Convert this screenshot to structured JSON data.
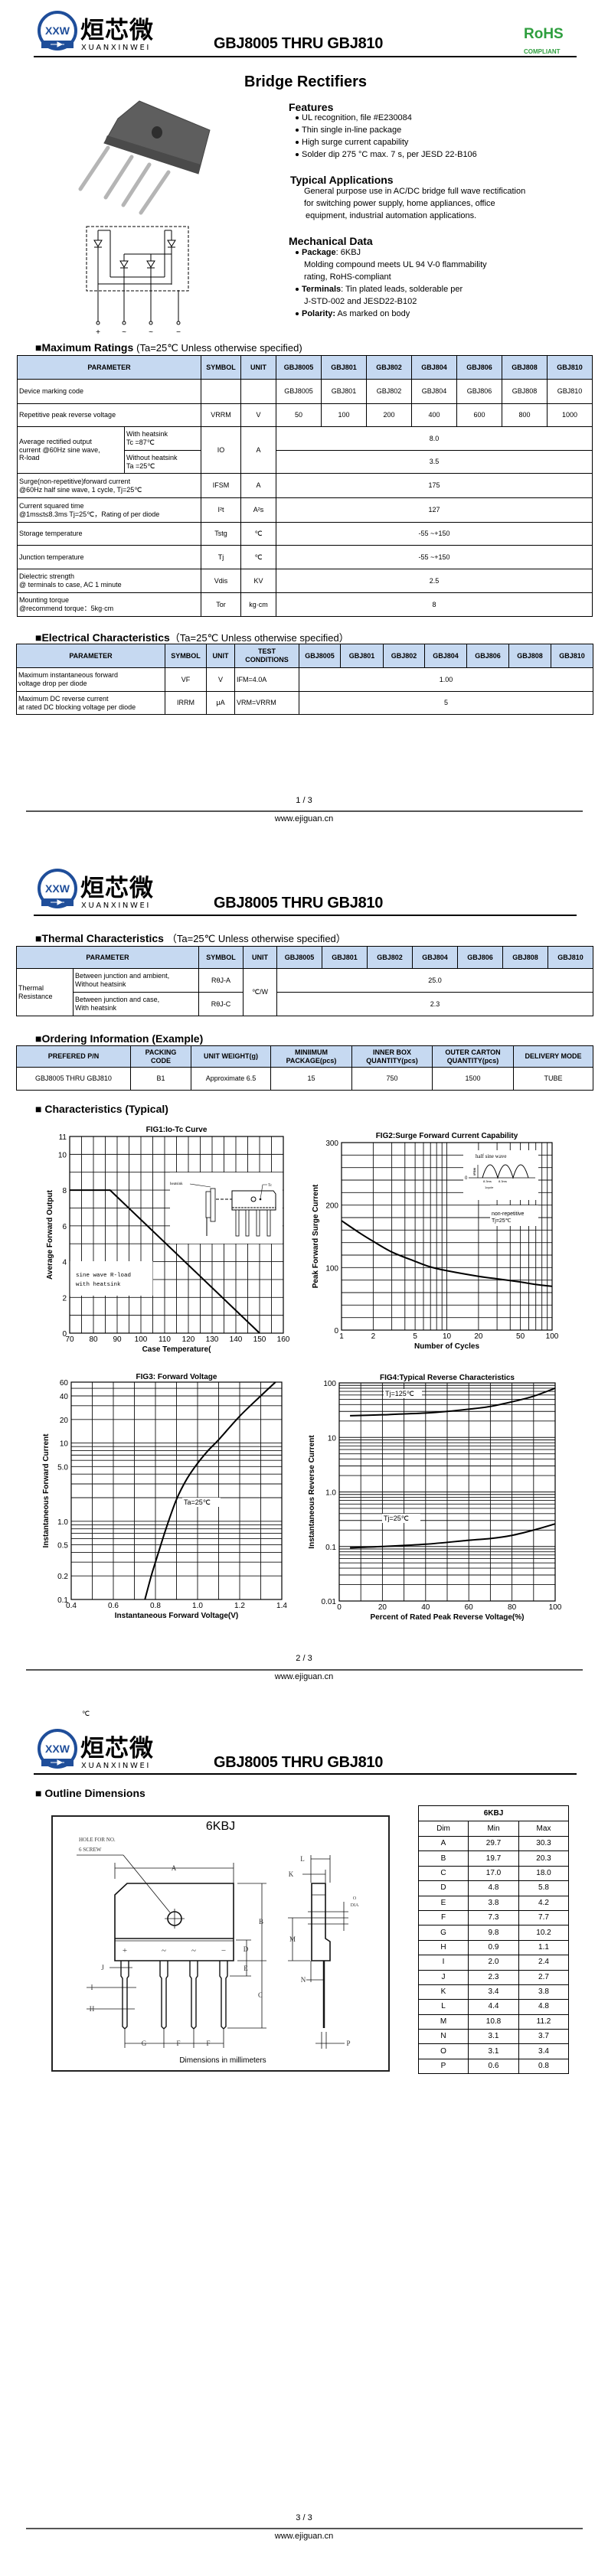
{
  "header": {
    "logo_mark": "XXW",
    "logo_cn": "烜芯微",
    "logo_en": "XUANXINWEI",
    "title": "GBJ8005 THRU GBJ810",
    "rohs": "RoHS",
    "rohs_sub": "COMPLIANT",
    "rohs_color": "#2e9e3e",
    "logo_color": "#1f4e9a"
  },
  "page1": {
    "heading": "Bridge Rectifiers",
    "features": {
      "title": "Features",
      "items": [
        "UL recognition, file #E230084",
        "Thin single in-line package",
        "High surge current capability",
        "Solder dip 275 °C max. 7 s, per JESD 22-B106"
      ]
    },
    "applications": {
      "title": "Typical Applications",
      "lines": [
        "General purpose use in AC/DC bridge full wave rectification",
        "for switching power supply, home appliances, office",
        "equipment, industrial automation applications."
      ]
    },
    "mechanical": {
      "title": "Mechanical Data",
      "package_label": "Package",
      "package_value": ": 6KBJ",
      "package_lines": [
        "Molding compound meets UL 94 V-0 flammability",
        "rating, RoHS-compliant"
      ],
      "terminals_label": "Terminals",
      "terminals_value": ": Tin plated leads, solderable  per",
      "terminals_line": "J-STD-002 and JESD22-B102",
      "polarity_label": "Polarity:",
      "polarity_value": " As marked on body"
    },
    "schematic_pins": [
      "+",
      "~",
      "~",
      "−"
    ]
  },
  "parts": [
    "GBJ8005",
    "GBJ801",
    "GBJ802",
    "GBJ804",
    "GBJ806",
    "GBJ808",
    "GBJ810"
  ],
  "cols": {
    "parameter": "PARAMETER",
    "symbol": "SYMBOL",
    "unit": "UNIT",
    "test": "TEST CONDITIONS"
  },
  "max_ratings": {
    "title": "■Maximum Ratings",
    "cond": "(Ta=25℃ Unless otherwise specified)",
    "marking": {
      "param": "Device marking code",
      "values": [
        "GBJ8005",
        "GBJ801",
        "GBJ802",
        "GBJ804",
        "GBJ806",
        "GBJ808",
        "GBJ810"
      ]
    },
    "vrrm": {
      "param": "Repetitive peak reverse voltage",
      "symbol": "VRRM",
      "unit": "V",
      "values": [
        "50",
        "100",
        "200",
        "400",
        "600",
        "800",
        "1000"
      ]
    },
    "io": {
      "param": [
        "Average rectified output",
        "current  @60Hz sine wave,",
        "R-load"
      ],
      "symbol": "IO",
      "unit": "A",
      "sub": [
        {
          "cond": [
            "With heatsink",
            "Tc =87℃"
          ],
          "value": "8.0"
        },
        {
          "cond": [
            "Without heatsink",
            "Ta =25℃"
          ],
          "value": "3.5"
        }
      ]
    },
    "ifsm": {
      "param": [
        "Surge(non-repetitive)forward current",
        "@60Hz half sine wave, 1 cycle, Tj=25℃"
      ],
      "symbol": "IFSM",
      "unit": "A",
      "value": "175"
    },
    "i2t": {
      "param": [
        "Current squared time",
        "@1ms≤t≤8.3ms Tj=25℃，Rating of per diode"
      ],
      "symbol": "I²t",
      "unit": "A²s",
      "value": "127"
    },
    "tstg": {
      "param": "Storage temperature",
      "symbol": "Tstg",
      "unit": "℃",
      "value": "-55 ~+150"
    },
    "tj": {
      "param": "Junction temperature",
      "symbol": "Tj",
      "unit": "℃",
      "value": "-55 ~+150"
    },
    "vdis": {
      "param": [
        "Dielectric strength",
        "@ terminals to case, AC 1 minute"
      ],
      "symbol": "Vdis",
      "unit": "KV",
      "value": "2.5"
    },
    "tor": {
      "param": [
        "Mounting torque",
        "@recommend torque：5kg·cm"
      ],
      "symbol": "Tor",
      "unit": "kg·cm",
      "value": "8"
    }
  },
  "electrical": {
    "title": "■Electrical Characteristics",
    "cond": "（Ta=25℃ Unless otherwise specified）",
    "vf": {
      "param": [
        "Maximum instantaneous forward",
        "voltage drop per diode"
      ],
      "symbol": "VF",
      "unit": "V",
      "test": "IFM=4.0A",
      "value": "1.00"
    },
    "irrm": {
      "param": [
        "Maximum DC reverse current",
        "at rated DC blocking voltage per diode"
      ],
      "symbol": "IRRM",
      "unit": "μA",
      "test": "VRM=VRRM",
      "value": "5"
    }
  },
  "thermal": {
    "title": "■Thermal Characteristics",
    "cond": "（Ta=25℃ Unless otherwise specified）",
    "group": [
      "Thermal",
      "Resistance"
    ],
    "unit": "℃/W",
    "rows": [
      {
        "cond": [
          "Between junction and ambient,",
          "Without heatsink"
        ],
        "symbol": "RθJ-A",
        "value": "25.0"
      },
      {
        "cond": [
          "Between junction and case,",
          "With heatsink"
        ],
        "symbol": "RθJ-C",
        "value": "2.3"
      }
    ]
  },
  "ordering": {
    "title": "■Ordering Information (Example)",
    "headers": [
      [
        "PREFERED P/N"
      ],
      [
        "PACKING",
        "CODE"
      ],
      [
        "UNIT WEIGHT(g)"
      ],
      [
        "MINIIMUM",
        "PACKAGE(pcs)"
      ],
      [
        "INNER BOX",
        "QUANTITY(pcs)"
      ],
      [
        "OUTER CARTON",
        "QUANTITY(pcs)"
      ],
      [
        "DELIVERY MODE"
      ]
    ],
    "row": [
      "GBJ8005 THRU GBJ810",
      "B1",
      "Approximate  6.5",
      "15",
      "750",
      "1500",
      "TUBE"
    ]
  },
  "characteristics_title": "■ Characteristics (Typical)",
  "chart_data": [
    {
      "type": "line",
      "title": "FIG1:Io-Tc Curve",
      "xlabel": "Case Temperature(",
      "ylabel": "Average Forward Output",
      "xscale": "linear",
      "yscale": "linear",
      "xlim": [
        70,
        160
      ],
      "ylim": [
        0,
        11
      ],
      "grid": true,
      "xticks": [
        "70",
        "80",
        "90",
        "100",
        "110",
        "120",
        "130",
        "140",
        "150",
        "160"
      ],
      "yticks": [
        "0",
        "2",
        "4",
        "6",
        "8",
        "10",
        "11"
      ],
      "series": [
        {
          "points": [
            [
              70,
              8
            ],
            [
              87,
              8
            ],
            [
              150,
              0
            ]
          ]
        }
      ],
      "annotations": [
        "heatsink",
        "Tc",
        "sine wave R-load",
        "with heatsink"
      ]
    },
    {
      "type": "line",
      "title": "FIG2:Surge Forward Current Capability",
      "xlabel": "Number of Cycles",
      "ylabel": "Peak Forward Surge Current",
      "xscale": "log",
      "yscale": "linear",
      "xlim": [
        1,
        100
      ],
      "ylim": [
        0,
        300
      ],
      "grid": true,
      "xticks": [
        "1",
        "2",
        "5",
        "10",
        "20",
        "50",
        "100"
      ],
      "yticks": [
        "0",
        "100",
        "200",
        "300"
      ],
      "series": [
        {
          "points": [
            [
              1,
              175
            ],
            [
              1.5,
              155
            ],
            [
              2,
              142
            ],
            [
              3,
              125
            ],
            [
              5,
              110
            ],
            [
              7,
              101
            ],
            [
              10,
              95
            ],
            [
              20,
              86
            ],
            [
              30,
              82
            ],
            [
              50,
              77
            ],
            [
              70,
              73
            ],
            [
              100,
              70
            ]
          ]
        }
      ],
      "annotations": [
        "half sine wave",
        "IFSM",
        "0",
        "8.3ms",
        "8.3ms",
        "1cycle",
        "non-repetitive",
        "Tj=25℃"
      ]
    },
    {
      "type": "line",
      "title": "FIG3: Forward Voltage",
      "xlabel": "Instantaneous Forward Voltage(V)",
      "ylabel": "Instantaneous Forward Current",
      "xscale": "linear",
      "yscale": "log",
      "xlim": [
        0.4,
        1.4
      ],
      "ylim": [
        0.1,
        60
      ],
      "grid": true,
      "xticks": [
        "0.4",
        "0.6",
        "0.8",
        "1.0",
        "1.2",
        "1.4"
      ],
      "yticks": [
        "0.1",
        "0.2",
        "0.5",
        "1.0",
        "5.0",
        "10",
        "20",
        "40",
        "60"
      ],
      "series": [
        {
          "name": "Ta=25℃",
          "points": [
            [
              0.75,
              0.1
            ],
            [
              0.78,
              0.2
            ],
            [
              0.8,
              0.3
            ],
            [
              0.85,
              0.8
            ],
            [
              0.9,
              1.9
            ],
            [
              0.95,
              3.5
            ],
            [
              1.0,
              5.5
            ],
            [
              1.05,
              8
            ],
            [
              1.1,
              11
            ],
            [
              1.2,
              22
            ],
            [
              1.3,
              40
            ],
            [
              1.37,
              60
            ]
          ]
        }
      ],
      "annotations": []
    },
    {
      "type": "line",
      "title": "FIG4:Typical Reverse Characteristics",
      "xlabel": "Percent of Rated Peak Reverse Voltage(%)",
      "ylabel": "Instantaneous Reverse Current",
      "xscale": "linear",
      "yscale": "log",
      "xlim": [
        0,
        100
      ],
      "ylim": [
        0.01,
        100
      ],
      "grid": true,
      "xticks": [
        "0",
        "20",
        "40",
        "60",
        "80",
        "100"
      ],
      "yticks": [
        "0.01",
        "0.1",
        "1.0",
        "10",
        "100"
      ],
      "series": [
        {
          "name": "Tj=125℃",
          "points": [
            [
              5,
              25
            ],
            [
              20,
              26
            ],
            [
              30,
              27
            ],
            [
              40,
              28
            ],
            [
              50,
              30
            ],
            [
              60,
              33
            ],
            [
              70,
              37
            ],
            [
              80,
              45
            ],
            [
              90,
              57
            ],
            [
              100,
              80
            ]
          ]
        },
        {
          "name": "Tj=25℃",
          "points": [
            [
              5,
              0.095
            ],
            [
              20,
              0.1
            ],
            [
              40,
              0.11
            ],
            [
              60,
              0.13
            ],
            [
              70,
              0.14
            ],
            [
              80,
              0.16
            ],
            [
              90,
              0.2
            ],
            [
              100,
              0.26
            ]
          ]
        }
      ],
      "annotations": []
    }
  ],
  "outline": {
    "title": "■ Outline Dimensions",
    "package": "6KBJ",
    "hole_note": [
      "HOLE FOR NO.",
      "6 SCREW"
    ],
    "units_note": "Dimensions in millimeters",
    "o_dia": [
      "O",
      "DIA"
    ],
    "pin_marks": [
      "+",
      "~",
      "~",
      "−"
    ],
    "table": {
      "title": "6KBJ",
      "headers": [
        "Dim",
        "Min",
        "Max"
      ],
      "rows": [
        [
          "A",
          "29.7",
          "30.3"
        ],
        [
          "B",
          "19.7",
          "20.3"
        ],
        [
          "C",
          "17.0",
          "18.0"
        ],
        [
          "D",
          "4.8",
          "5.8"
        ],
        [
          "E",
          "3.8",
          "4.2"
        ],
        [
          "F",
          "7.3",
          "7.7"
        ],
        [
          "G",
          "9.8",
          "10.2"
        ],
        [
          "H",
          "0.9",
          "1.1"
        ],
        [
          "I",
          "2.0",
          "2.4"
        ],
        [
          "J",
          "2.3",
          "2.7"
        ],
        [
          "K",
          "3.4",
          "3.8"
        ],
        [
          "L",
          "4.4",
          "4.8"
        ],
        [
          "M",
          "10.8",
          "11.2"
        ],
        [
          "N",
          "3.1",
          "3.7"
        ],
        [
          "O",
          "3.1",
          "3.4"
        ],
        [
          "P",
          "0.6",
          "0.8"
        ]
      ]
    }
  },
  "footer": {
    "site": "www.ejiguan.cn",
    "pages": [
      "1 / 3",
      "2 / 3",
      "3 / 3"
    ]
  },
  "stray_mark": "℃"
}
